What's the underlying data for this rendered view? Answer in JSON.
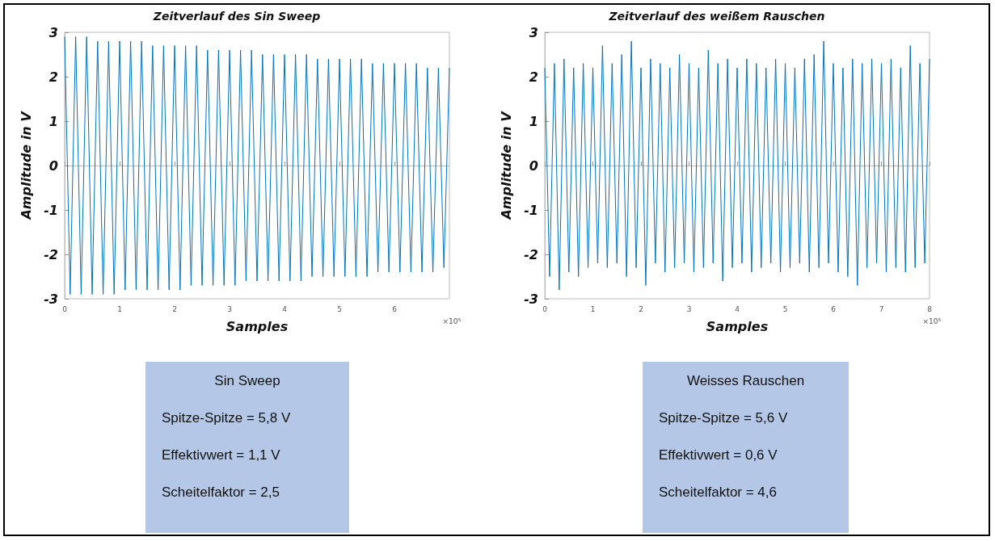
{
  "chart_data": [
    {
      "type": "line",
      "title": "Zeitverlauf des Sin Sweep",
      "xlabel": "Samples",
      "ylabel": "Amplitude in V",
      "x": [
        0,
        0.1,
        0.2,
        0.3,
        0.4,
        0.5,
        0.6,
        0.7,
        0.8,
        0.9,
        1,
        1.1,
        1.2,
        1.3,
        1.4,
        1.5,
        1.6,
        1.7,
        1.8,
        1.9,
        2,
        2.1,
        2.2,
        2.3,
        2.4,
        2.5,
        2.6,
        2.7,
        2.8,
        2.9,
        3,
        3.1,
        3.2,
        3.3,
        3.4,
        3.5,
        3.6,
        3.7,
        3.8,
        3.9,
        4,
        4.1,
        4.2,
        4.3,
        4.4,
        4.5,
        4.6,
        4.7,
        4.8,
        4.9,
        5,
        5.1,
        5.2,
        5.3,
        5.4,
        5.5,
        5.6,
        5.7,
        5.8,
        5.9,
        6,
        6.1,
        6.2,
        6.3,
        6.4,
        6.5,
        6.6,
        6.7,
        6.8,
        6.9,
        7
      ],
      "series": [
        {
          "color": "#0072bd",
          "values": [
            2.9,
            -2.9,
            2.9,
            -2.9,
            2.9,
            -2.9,
            2.8,
            -2.9,
            2.8,
            -2.9,
            2.8,
            -2.8,
            2.8,
            -2.8,
            2.8,
            -2.8,
            2.7,
            -2.8,
            2.7,
            -2.8,
            2.7,
            -2.8,
            2.7,
            -2.7,
            2.7,
            -2.7,
            2.6,
            -2.7,
            2.6,
            -2.7,
            2.6,
            -2.7,
            2.6,
            -2.6,
            2.6,
            -2.6,
            2.5,
            -2.6,
            2.5,
            -2.6,
            2.5,
            -2.6,
            2.5,
            -2.6,
            2.5,
            -2.5,
            2.4,
            -2.5,
            2.4,
            -2.5,
            2.4,
            -2.5,
            2.4,
            -2.5,
            2.4,
            -2.5,
            2.3,
            -2.4,
            2.3,
            -2.4,
            2.3,
            -2.4,
            2.3,
            -2.4,
            2.3,
            -2.4,
            2.2,
            -2.4,
            2.2,
            -2.3,
            2.2
          ]
        }
      ],
      "xlim": [
        0,
        7
      ],
      "xticks": [
        0,
        1,
        2,
        3,
        4,
        5,
        6
      ],
      "ylim": [
        -3,
        3
      ],
      "yticks": [
        -3,
        -2,
        -1,
        0,
        1,
        2,
        3
      ],
      "annotations": [
        "×10⁵"
      ]
    },
    {
      "type": "line",
      "title": "Zeitverlauf des weißem Rauschen",
      "xlabel": "Samples",
      "ylabel": "Amplitude in V",
      "x": [
        0,
        0.1,
        0.2,
        0.3,
        0.4,
        0.5,
        0.6,
        0.7,
        0.8,
        0.9,
        1,
        1.1,
        1.2,
        1.3,
        1.4,
        1.5,
        1.6,
        1.7,
        1.8,
        1.9,
        2,
        2.1,
        2.2,
        2.3,
        2.4,
        2.5,
        2.6,
        2.7,
        2.8,
        2.9,
        3,
        3.1,
        3.2,
        3.3,
        3.4,
        3.5,
        3.6,
        3.7,
        3.8,
        3.9,
        4,
        4.1,
        4.2,
        4.3,
        4.4,
        4.5,
        4.6,
        4.7,
        4.8,
        4.9,
        5,
        5.1,
        5.2,
        5.3,
        5.4,
        5.5,
        5.6,
        5.7,
        5.8,
        5.9,
        6,
        6.1,
        6.2,
        6.3,
        6.4,
        6.5,
        6.6,
        6.7,
        6.8,
        6.9,
        7,
        7.1,
        7.2,
        7.3,
        7.4,
        7.5,
        7.6,
        7.7,
        7.8,
        7.9,
        8
      ],
      "series": [
        {
          "color": "#0072bd",
          "values": [
            2.2,
            -2.5,
            2.3,
            -2.8,
            2.4,
            -2.4,
            2.2,
            -2.5,
            2.3,
            -2.3,
            2.2,
            -2.2,
            2.7,
            -2.3,
            2.3,
            -2.2,
            2.5,
            -2.5,
            2.8,
            -2.3,
            2.2,
            -2.7,
            2.4,
            -2.2,
            2.3,
            -2.4,
            2.2,
            -2.3,
            2.5,
            -2.2,
            2.3,
            -2.4,
            2.2,
            -2.3,
            2.6,
            -2.2,
            2.3,
            -2.6,
            2.4,
            -2.3,
            2.2,
            -2.2,
            2.4,
            -2.4,
            2.3,
            -2.3,
            2.2,
            -2.2,
            2.4,
            -2.4,
            2.3,
            -2.3,
            2.2,
            -2.2,
            2.4,
            -2.4,
            2.5,
            -2.3,
            2.8,
            -2.2,
            2.3,
            -2.4,
            2.2,
            -2.5,
            2.4,
            -2.7,
            2.3,
            -2.3,
            2.4,
            -2.2,
            2.3,
            -2.4,
            2.4,
            -2.3,
            2.2,
            -2.4,
            2.7,
            -2.3,
            2.3,
            -2.2,
            2.4
          ]
        }
      ],
      "xlim": [
        0,
        8
      ],
      "xticks": [
        0,
        1,
        2,
        3,
        4,
        5,
        6,
        7,
        8
      ],
      "ylim": [
        -3,
        3
      ],
      "yticks": [
        -3,
        -2,
        -1,
        0,
        1,
        2,
        3
      ],
      "annotations": [
        "×10⁵"
      ]
    },
    {
      "type": "other",
      "title": "Sin Sweep",
      "annotations": [
        "Spitze-Spitze = 5,8 V",
        "Effektivwert = 1,1 V",
        "Scheitelfaktor = 2,5"
      ]
    },
    {
      "type": "other",
      "title": "Weisses Rauschen",
      "annotations": [
        "Spitze-Spitze = 5,6 V",
        "Effektivwert = 0,6 V",
        "Scheitelfaktor = 4,6"
      ]
    }
  ]
}
